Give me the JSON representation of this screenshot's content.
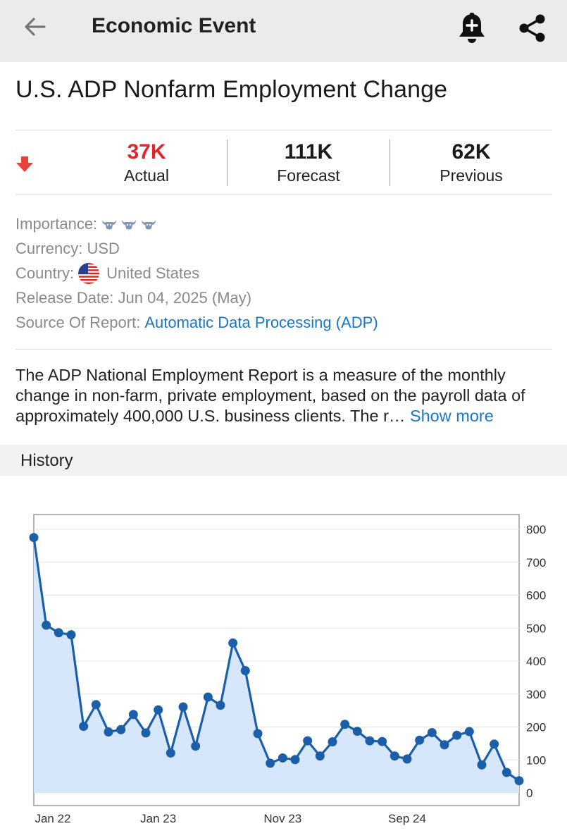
{
  "header": {
    "title": "Economic Event"
  },
  "event": {
    "title": "U.S. ADP Nonfarm Employment Change",
    "trend": "down",
    "actual": {
      "value": "37K",
      "label": "Actual",
      "color": "#e8202a"
    },
    "forecast": {
      "value": "111K",
      "label": "Forecast"
    },
    "previous": {
      "value": "62K",
      "label": "Previous"
    }
  },
  "details": {
    "importance_label": "Importance:",
    "importance_level": 3,
    "currency_label": "Currency:",
    "currency_value": "USD",
    "country_label": "Country:",
    "country_value": "United States",
    "release_label": "Release Date:",
    "release_value": "Jun 04, 2025 (May)",
    "source_label": "Source Of Report:",
    "source_value": "Automatic Data Processing (ADP)"
  },
  "description": {
    "text": "The ADP National Employment Report is a measure of the monthly change in non-farm, private employment, based on the payroll data of approximately 400,000 U.S. business clients. The r…",
    "show_more": "Show more"
  },
  "history": {
    "title": "History"
  },
  "colors": {
    "accent_blue": "#1976c8",
    "negative_red": "#e8202a",
    "line_blue": "#1a5fa8",
    "area_fill": "#d6e6fb"
  },
  "chart_data": {
    "type": "area",
    "x_tick_labels": [
      "Jan 22",
      "Jan 23",
      "Nov 23",
      "Sep 24"
    ],
    "x_tick_positions": [
      0,
      10,
      20,
      30
    ],
    "y_ticks": [
      0,
      100,
      200,
      300,
      400,
      500,
      600,
      700,
      800
    ],
    "ylim": [
      0,
      800
    ],
    "y_axis_side": "right",
    "grid": true,
    "values": [
      775,
      509,
      486,
      480,
      202,
      268,
      185,
      192,
      238,
      182,
      252,
      121,
      261,
      142,
      291,
      266,
      455,
      371,
      180,
      90,
      106,
      101,
      158,
      112,
      155,
      208,
      187,
      158,
      156,
      112,
      103,
      160,
      183,
      146,
      175,
      186,
      85,
      148,
      62,
      37
    ]
  }
}
